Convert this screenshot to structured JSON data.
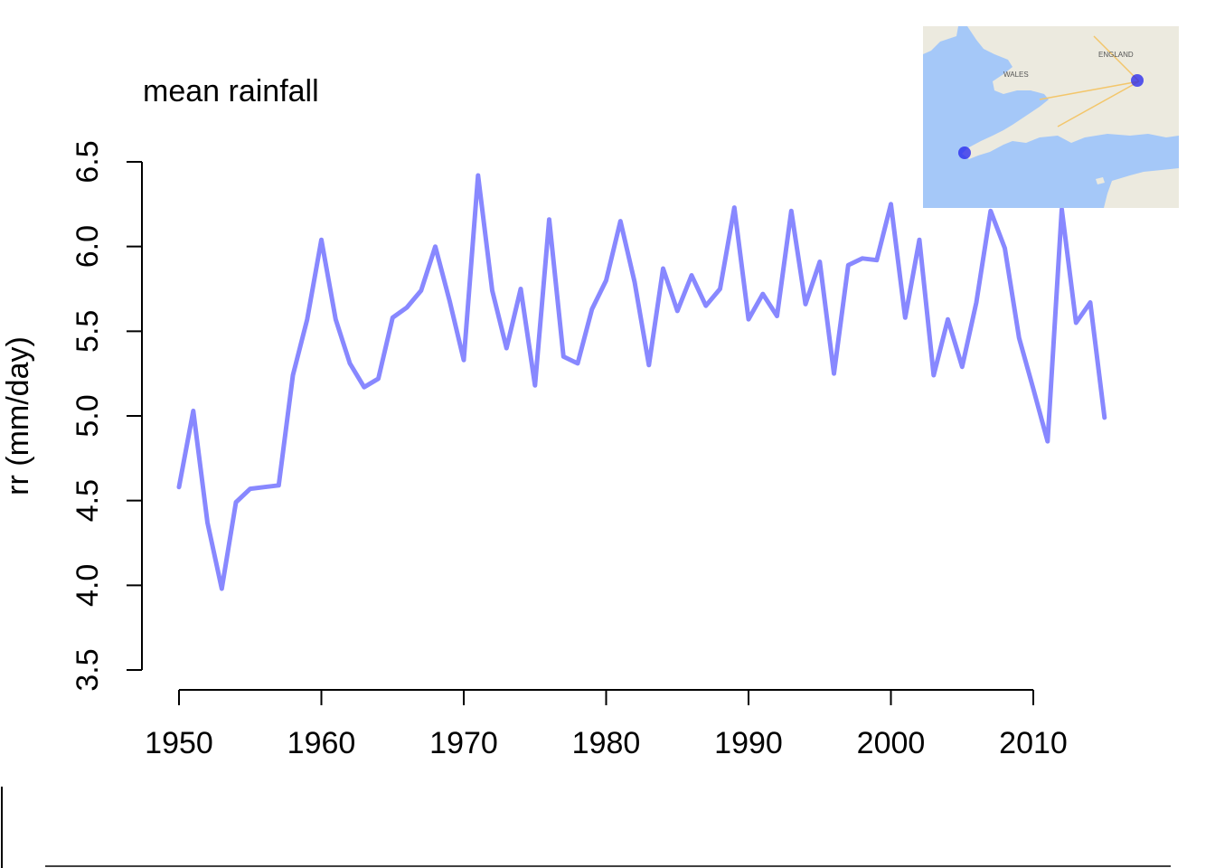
{
  "chart_data": {
    "type": "line",
    "title": "mean rainfall",
    "xlabel": "",
    "ylabel": "rr  (mm/day)",
    "xlim": [
      1947.5,
      2017.5
    ],
    "ylim": [
      3.5,
      6.5
    ],
    "xticks": [
      1950,
      1960,
      1970,
      1980,
      1990,
      2000,
      2010
    ],
    "yticks": [
      3.5,
      4.0,
      4.5,
      5.0,
      5.5,
      6.0,
      6.5
    ],
    "xtick_labels": [
      "1950",
      "1960",
      "1970",
      "1980",
      "1990",
      "2000",
      "2010"
    ],
    "ytick_labels": [
      "3.5",
      "4.0",
      "4.5",
      "5.0",
      "5.5",
      "6.0",
      "6.5"
    ],
    "grid": false,
    "legend": "none",
    "line_color": "#8888ff",
    "series": [
      {
        "x": [
          1950,
          1951,
          1952,
          1953,
          1954,
          1955,
          1956,
          1957,
          1958,
          1959,
          1960,
          1961,
          1962,
          1963,
          1964,
          1965,
          1966,
          1967,
          1968,
          1969,
          1970,
          1971,
          1972,
          1973,
          1974,
          1975,
          1976,
          1977,
          1978,
          1979,
          1980,
          1981,
          1982,
          1983,
          1984,
          1985,
          1986,
          1987,
          1988,
          1989,
          1990,
          1991,
          1992,
          1993,
          1994,
          1995,
          1996,
          1997,
          1998,
          1999,
          2000,
          2001,
          2002,
          2003,
          2004,
          2005,
          2006,
          2007,
          2008,
          2009,
          2010,
          2011,
          2012,
          2013,
          2014,
          2015
        ],
        "values": [
          4.58,
          5.03,
          4.37,
          3.98,
          4.49,
          4.57,
          4.58,
          4.59,
          5.24,
          5.57,
          6.04,
          5.57,
          5.31,
          5.17,
          5.22,
          5.58,
          5.64,
          5.74,
          6.0,
          5.68,
          5.33,
          6.42,
          5.74,
          5.4,
          5.75,
          5.18,
          6.16,
          5.35,
          5.31,
          5.63,
          5.8,
          6.15,
          5.79,
          5.3,
          5.87,
          5.62,
          5.83,
          5.65,
          5.75,
          6.23,
          5.57,
          5.72,
          5.59,
          6.21,
          5.66,
          5.91,
          5.25,
          5.89,
          5.93,
          5.92,
          6.25,
          5.58,
          6.04,
          5.24,
          5.57,
          5.29,
          5.67,
          6.21,
          5.99,
          5.46,
          5.16,
          4.85,
          6.22,
          5.55,
          5.67,
          4.99
        ]
      }
    ]
  },
  "inset_map": {
    "water_color": "#a5c8f8",
    "land_color": "#eceadf",
    "marker_color": "#2222ee",
    "labels": [
      "WALES",
      "ENGLAND"
    ]
  }
}
